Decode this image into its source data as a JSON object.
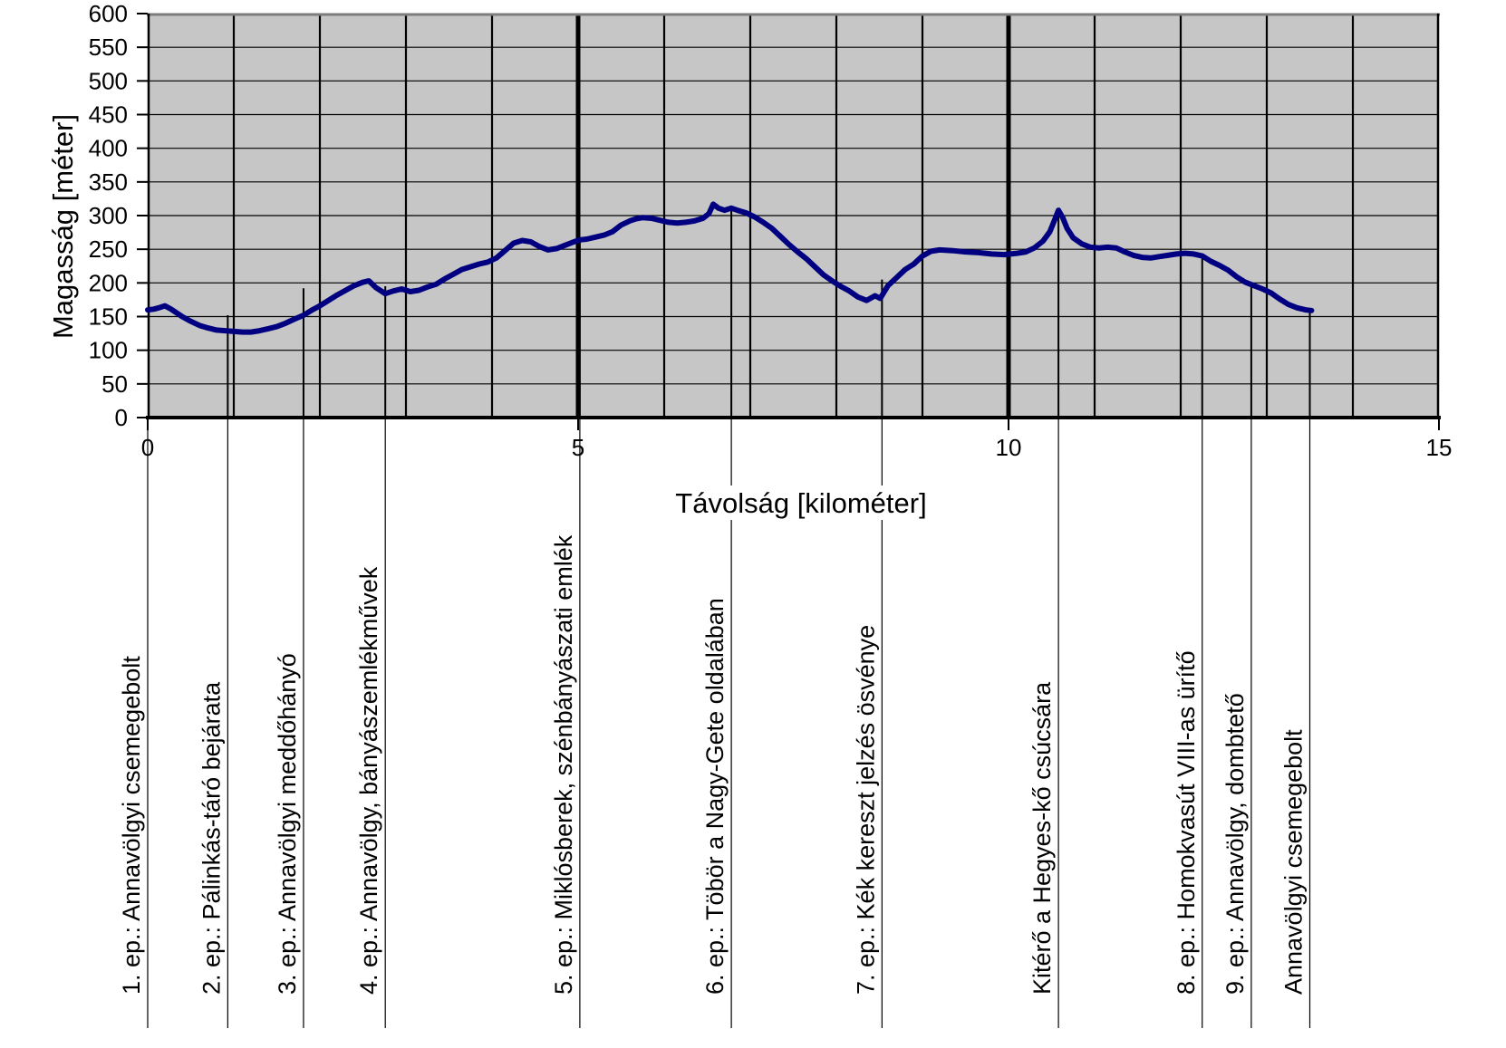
{
  "chart_data": {
    "type": "line",
    "title": "",
    "xlabel": "Távolság [kilométer]",
    "ylabel": "Magasság [méter]",
    "xlim": [
      0,
      15
    ],
    "ylim": [
      0,
      600
    ],
    "x_tick_values": [
      0,
      5,
      10,
      15
    ],
    "x_tick_labels": [
      "0",
      "5",
      "10",
      "15"
    ],
    "x_minor_grid_step_km": 1,
    "y_tick_step": 50,
    "y_tick_labels": [
      "0",
      "50",
      "100",
      "150",
      "200",
      "250",
      "300",
      "350",
      "400",
      "450",
      "500",
      "550",
      "600"
    ],
    "grid": {
      "horizontal": true,
      "vertical": true,
      "major_vertical_at": [
        5,
        10
      ]
    },
    "legend": "none",
    "colors": {
      "plot_background": "#c6c6c6",
      "profile_line": "#000080",
      "grid_line": "#000000",
      "axis_line": "#000000",
      "plot_top_border": "#7d7d7d",
      "text": "#000000",
      "page_background": "#ffffff"
    },
    "series": [
      {
        "name": "elevation-profile",
        "color": "#000080",
        "points": [
          [
            0,
            160
          ],
          [
            0.07,
            161
          ],
          [
            0.13,
            163
          ],
          [
            0.2,
            166
          ],
          [
            0.27,
            161
          ],
          [
            0.33,
            156
          ],
          [
            0.4,
            150
          ],
          [
            0.5,
            143
          ],
          [
            0.6,
            137
          ],
          [
            0.7,
            133
          ],
          [
            0.8,
            130
          ],
          [
            0.9,
            129
          ],
          [
            1.0,
            128
          ],
          [
            1.1,
            127
          ],
          [
            1.2,
            127
          ],
          [
            1.3,
            129
          ],
          [
            1.4,
            132
          ],
          [
            1.5,
            135
          ],
          [
            1.6,
            140
          ],
          [
            1.7,
            146
          ],
          [
            1.81,
            152
          ],
          [
            1.9,
            159
          ],
          [
            2.0,
            166
          ],
          [
            2.1,
            174
          ],
          [
            2.2,
            182
          ],
          [
            2.3,
            189
          ],
          [
            2.4,
            196
          ],
          [
            2.5,
            201
          ],
          [
            2.57,
            203
          ],
          [
            2.65,
            193
          ],
          [
            2.76,
            184
          ],
          [
            2.85,
            188
          ],
          [
            2.95,
            191
          ],
          [
            3.05,
            187
          ],
          [
            3.15,
            189
          ],
          [
            3.25,
            194
          ],
          [
            3.35,
            198
          ],
          [
            3.45,
            206
          ],
          [
            3.55,
            213
          ],
          [
            3.65,
            220
          ],
          [
            3.75,
            224
          ],
          [
            3.85,
            228
          ],
          [
            3.95,
            231
          ],
          [
            4.05,
            237
          ],
          [
            4.15,
            248
          ],
          [
            4.25,
            259
          ],
          [
            4.35,
            263
          ],
          [
            4.45,
            261
          ],
          [
            4.55,
            254
          ],
          [
            4.65,
            249
          ],
          [
            4.75,
            251
          ],
          [
            4.85,
            256
          ],
          [
            4.95,
            261
          ],
          [
            5.02,
            264
          ],
          [
            5.1,
            265
          ],
          [
            5.2,
            268
          ],
          [
            5.3,
            271
          ],
          [
            5.4,
            276
          ],
          [
            5.5,
            286
          ],
          [
            5.6,
            292
          ],
          [
            5.67,
            295
          ],
          [
            5.75,
            297
          ],
          [
            5.85,
            296
          ],
          [
            5.95,
            293
          ],
          [
            6.05,
            290
          ],
          [
            6.15,
            289
          ],
          [
            6.25,
            290
          ],
          [
            6.35,
            292
          ],
          [
            6.45,
            296
          ],
          [
            6.52,
            303
          ],
          [
            6.57,
            317
          ],
          [
            6.63,
            311
          ],
          [
            6.7,
            308
          ],
          [
            6.78,
            311
          ],
          [
            6.85,
            308
          ],
          [
            6.95,
            304
          ],
          [
            7.05,
            298
          ],
          [
            7.15,
            290
          ],
          [
            7.25,
            281
          ],
          [
            7.35,
            269
          ],
          [
            7.45,
            257
          ],
          [
            7.55,
            246
          ],
          [
            7.65,
            236
          ],
          [
            7.75,
            224
          ],
          [
            7.85,
            212
          ],
          [
            7.95,
            203
          ],
          [
            8.05,
            195
          ],
          [
            8.15,
            188
          ],
          [
            8.25,
            179
          ],
          [
            8.35,
            174
          ],
          [
            8.45,
            181
          ],
          [
            8.51,
            177
          ],
          [
            8.6,
            196
          ],
          [
            8.7,
            208
          ],
          [
            8.8,
            220
          ],
          [
            8.9,
            228
          ],
          [
            9.0,
            240
          ],
          [
            9.1,
            247
          ],
          [
            9.2,
            249
          ],
          [
            9.35,
            248
          ],
          [
            9.5,
            246
          ],
          [
            9.65,
            245
          ],
          [
            9.8,
            243
          ],
          [
            9.95,
            242
          ],
          [
            10.1,
            244
          ],
          [
            10.2,
            246
          ],
          [
            10.3,
            252
          ],
          [
            10.4,
            262
          ],
          [
            10.48,
            276
          ],
          [
            10.54,
            295
          ],
          [
            10.58,
            308
          ],
          [
            10.63,
            297
          ],
          [
            10.68,
            281
          ],
          [
            10.75,
            267
          ],
          [
            10.85,
            258
          ],
          [
            10.95,
            253
          ],
          [
            11.05,
            252
          ],
          [
            11.15,
            253
          ],
          [
            11.25,
            252
          ],
          [
            11.35,
            246
          ],
          [
            11.45,
            241
          ],
          [
            11.55,
            238
          ],
          [
            11.65,
            237
          ],
          [
            11.75,
            239
          ],
          [
            11.85,
            241
          ],
          [
            11.95,
            243
          ],
          [
            12.05,
            244
          ],
          [
            12.15,
            243
          ],
          [
            12.25,
            240
          ],
          [
            12.35,
            232
          ],
          [
            12.45,
            226
          ],
          [
            12.55,
            219
          ],
          [
            12.65,
            209
          ],
          [
            12.75,
            201
          ],
          [
            12.85,
            196
          ],
          [
            12.95,
            191
          ],
          [
            13.05,
            185
          ],
          [
            13.15,
            176
          ],
          [
            13.25,
            168
          ],
          [
            13.35,
            163
          ],
          [
            13.45,
            160
          ],
          [
            13.52,
            159
          ]
        ]
      }
    ],
    "waypoints": [
      {
        "label": "1. ep.: Annavölgyi csemegebolt",
        "km": 0.0,
        "line_top_elev": 160
      },
      {
        "label": "2. ep.: Pálinkás-táró bejárata",
        "km": 0.93,
        "line_top_elev": 152
      },
      {
        "label": "3. ep.: Annavölgyi meddőhányó",
        "km": 1.81,
        "line_top_elev": 192
      },
      {
        "label": "4. ep.: Annavölgy, bányászemlékművek",
        "km": 2.76,
        "line_top_elev": 195
      },
      {
        "label": "5. ep.: Miklósberek, szénbányászati emlék",
        "km": 5.02,
        "line_top_elev": 264
      },
      {
        "label": "6. ep.: Töbör a Nagy-Gete oldalában",
        "km": 6.78,
        "line_top_elev": 312
      },
      {
        "label": "7. ep.: Kék kereszt jelzés ösvénye",
        "km": 8.53,
        "line_top_elev": 205
      },
      {
        "label": "Kitérő a Hegyes-kő csúcsára",
        "km": 10.58,
        "line_top_elev": 309
      },
      {
        "label": "8. ep.: Homokvasút VIII-as ürítő",
        "km": 12.25,
        "line_top_elev": 240
      },
      {
        "label": "9. ep.: Annavölgy, dombtető",
        "km": 12.82,
        "line_top_elev": 197
      },
      {
        "label": "Annavölgyi csemegebolt",
        "km": 13.5,
        "line_top_elev": 160
      }
    ]
  }
}
